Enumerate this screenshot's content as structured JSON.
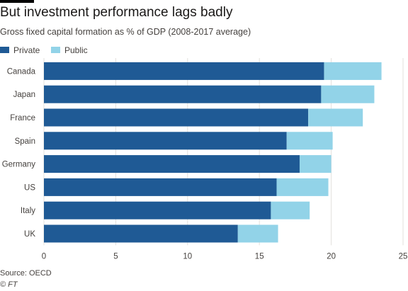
{
  "chart_data": {
    "type": "bar",
    "orientation": "horizontal",
    "stacked": true,
    "title": "But investment performance lags badly",
    "subtitle": "Gross fixed capital formation as % of GDP (2008-2017 average)",
    "categories": [
      "Canada",
      "Japan",
      "France",
      "Spain",
      "Germany",
      "US",
      "Italy",
      "UK"
    ],
    "series": [
      {
        "name": "Private",
        "color": "#1f5a95",
        "values": [
          19.5,
          19.3,
          18.4,
          16.9,
          17.8,
          16.2,
          15.8,
          13.5
        ]
      },
      {
        "name": "Public",
        "color": "#92d3e8",
        "values": [
          4.0,
          3.7,
          3.8,
          3.2,
          2.2,
          3.6,
          2.7,
          2.8
        ]
      }
    ],
    "xlim": [
      0,
      25
    ],
    "xticks": [
      0,
      5,
      10,
      15,
      20,
      25
    ],
    "xlabel": "",
    "ylabel": "",
    "grid": "vertical",
    "legend_position": "top-left",
    "source": "Source: OECD",
    "credit": "© FT"
  }
}
